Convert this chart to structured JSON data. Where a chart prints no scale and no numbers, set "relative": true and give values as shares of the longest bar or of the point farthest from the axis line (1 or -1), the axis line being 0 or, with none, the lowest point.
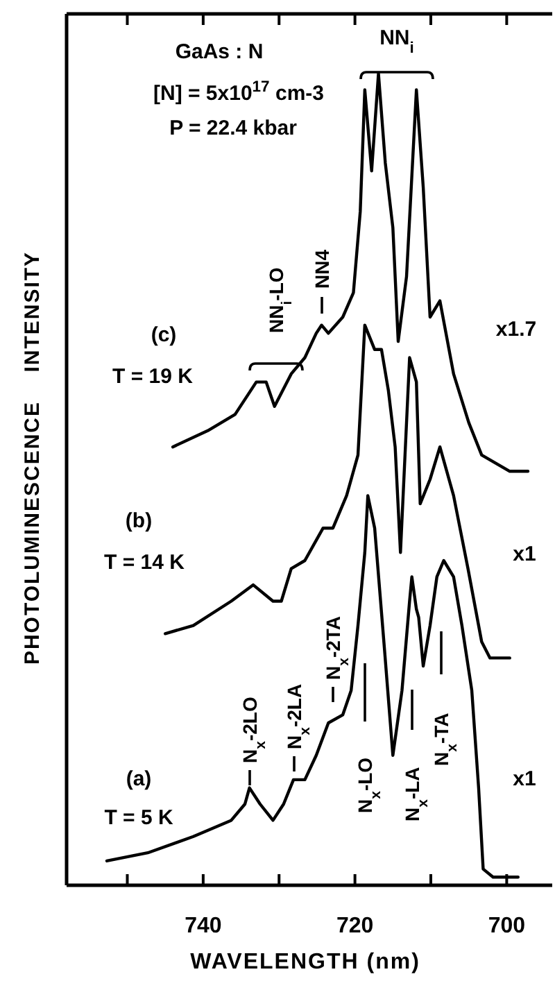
{
  "chart_data": {
    "type": "line",
    "relative": true,
    "xlabel": "WAVELENGTH  (nm)",
    "ylabel": "PHOTOLUMINESCENCE    INTENSITY",
    "xlim": [
      758,
      694
    ],
    "xticks": [
      {
        "value": 750,
        "label": null
      },
      740,
      {
        "value": 730,
        "label": null
      },
      720,
      {
        "value": 710,
        "label": null
      },
      700
    ],
    "marker": "none",
    "line_style": "solid",
    "grid": false,
    "series": [
      {
        "name": "T = 5 K",
        "color": "#000000",
        "x": [
          752.7,
          747.3,
          741.3,
          736.3,
          734.5,
          733.9,
          732.5,
          730.8,
          729.4,
          728.1,
          726.6,
          725.1,
          723.5,
          721.6,
          720.5,
          719.6,
          718.7,
          718.3,
          717.4,
          716.1,
          715.0,
          713.8,
          712.8,
          712.5,
          711.9,
          711.6,
          711.0,
          710.1,
          709.2,
          708.3,
          707.0,
          705.9,
          704.6,
          703.7,
          703.1,
          701.8,
          698.5
        ],
        "values": [
          0.03,
          0.04,
          0.06,
          0.08,
          0.1,
          0.12,
          0.1,
          0.08,
          0.1,
          0.13,
          0.13,
          0.16,
          0.2,
          0.21,
          0.24,
          0.32,
          0.41,
          0.48,
          0.44,
          0.29,
          0.16,
          0.24,
          0.35,
          0.38,
          0.34,
          0.33,
          0.27,
          0.32,
          0.38,
          0.4,
          0.38,
          0.32,
          0.24,
          0.12,
          0.02,
          0.01,
          0.01
        ]
      },
      {
        "name": "T = 14 K",
        "color": "#000000",
        "x": [
          745.0,
          741.3,
          736.3,
          733.4,
          730.8,
          729.7,
          728.4,
          726.6,
          724.8,
          724.2,
          722.9,
          721.1,
          719.6,
          718.7,
          717.4,
          716.5,
          715.6,
          714.7,
          714.0,
          712.8,
          711.9,
          711.4,
          710.1,
          708.8,
          707.0,
          705.1,
          703.3,
          702.2,
          699.6
        ],
        "values": [
          0.31,
          0.32,
          0.35,
          0.37,
          0.35,
          0.35,
          0.39,
          0.4,
          0.43,
          0.44,
          0.44,
          0.48,
          0.53,
          0.69,
          0.66,
          0.66,
          0.61,
          0.54,
          0.41,
          0.65,
          0.62,
          0.47,
          0.5,
          0.54,
          0.48,
          0.39,
          0.3,
          0.28,
          0.28
        ]
      },
      {
        "name": "T = 19 K",
        "color": "#000000",
        "x": [
          744.0,
          739.4,
          735.8,
          733.0,
          731.7,
          730.6,
          728.4,
          726.6,
          725.1,
          724.4,
          723.5,
          721.6,
          720.2,
          719.3,
          718.7,
          717.8,
          716.9,
          716.0,
          715.0,
          714.3,
          713.2,
          711.9,
          711.0,
          710.1,
          708.8,
          707.0,
          705.0,
          703.3,
          699.6,
          697.2
        ],
        "values": [
          0.54,
          0.56,
          0.58,
          0.62,
          0.62,
          0.59,
          0.63,
          0.65,
          0.68,
          0.69,
          0.68,
          0.7,
          0.73,
          0.83,
          0.98,
          0.88,
          1.0,
          0.89,
          0.81,
          0.67,
          0.75,
          0.98,
          0.86,
          0.7,
          0.72,
          0.63,
          0.57,
          0.53,
          0.51,
          0.51
        ]
      }
    ],
    "annotations": [
      "GaAs : N",
      "[N] = 5x10$^{17}$ cm-3",
      "P = 22.4 kbar",
      "(a)",
      "(b)",
      "(c)",
      "x1",
      "x1",
      "x1.7",
      "NN$_{i}$",
      "NN$_{i}$-LO",
      "NN4",
      "N$_{x}$-2LO",
      "N$_{x}$-2LA",
      "N$_{x}$-2TA",
      "N$_{x}$-LO",
      "N$_{x}$-LA",
      "N$_{x}$-TA"
    ]
  }
}
